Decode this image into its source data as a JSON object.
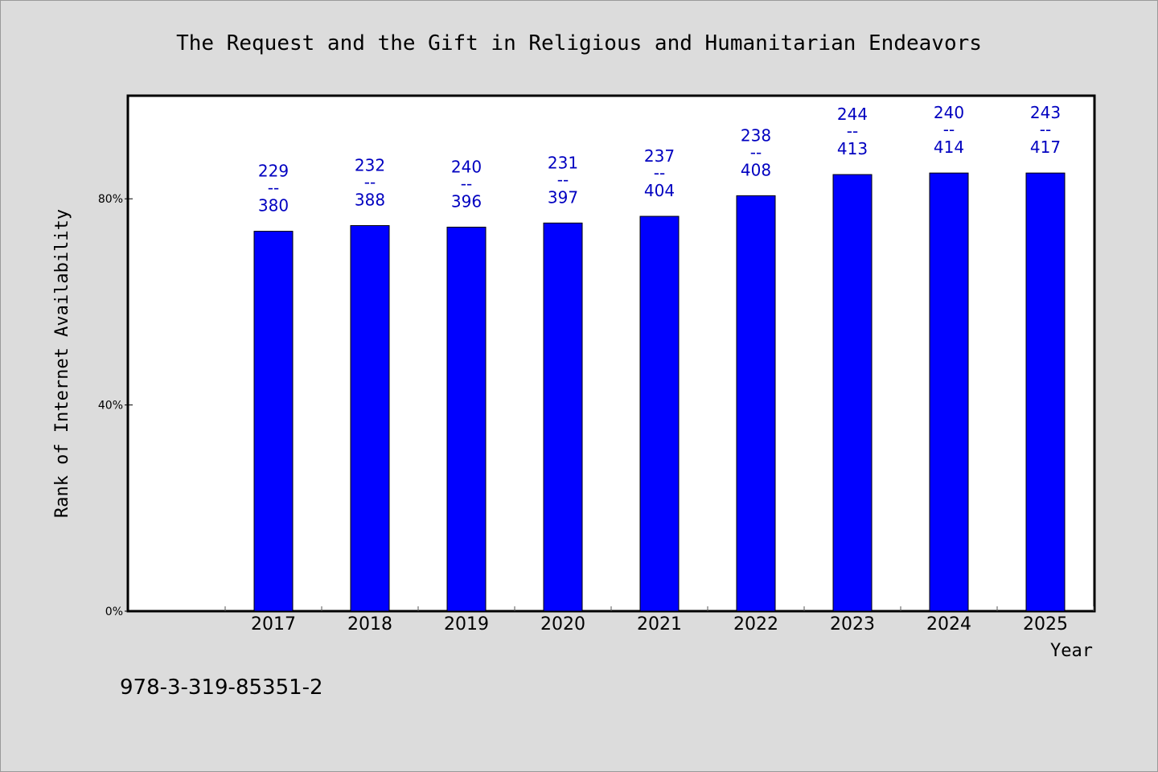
{
  "colors": {
    "background": "#dcdcdc",
    "plot_bg": "#ffffff",
    "bar": "#0000ff",
    "label": "#0000c0",
    "text": "#000000"
  },
  "footer": {
    "id_text": "978-3-319-85351-2"
  },
  "chart_data": {
    "type": "bar",
    "title": "The Request and the Gift in Religious and Humanitarian Endeavors",
    "xlabel": "Year",
    "ylabel": "Rank of Internet Availability",
    "categories": [
      "2017",
      "2018",
      "2019",
      "2020",
      "2021",
      "2022",
      "2023",
      "2024",
      "2025"
    ],
    "values": [
      73.7,
      74.8,
      74.5,
      75.3,
      76.6,
      80.6,
      84.7,
      85.0,
      85.0
    ],
    "value_unit": "%",
    "data_labels": [
      {
        "top": "229",
        "sep": "--",
        "bottom": "380"
      },
      {
        "top": "232",
        "sep": "--",
        "bottom": "388"
      },
      {
        "top": "240",
        "sep": "--",
        "bottom": "396"
      },
      {
        "top": "231",
        "sep": "--",
        "bottom": "397"
      },
      {
        "top": "237",
        "sep": "--",
        "bottom": "404"
      },
      {
        "top": "238",
        "sep": "--",
        "bottom": "408"
      },
      {
        "top": "244",
        "sep": "--",
        "bottom": "413"
      },
      {
        "top": "240",
        "sep": "--",
        "bottom": "414"
      },
      {
        "top": "243",
        "sep": "--",
        "bottom": "417"
      }
    ],
    "ylim": [
      0,
      100
    ],
    "yticks": [
      0,
      40,
      80
    ],
    "ytick_labels": [
      "0%",
      "40%",
      "80%"
    ],
    "grid": false,
    "legend": "none"
  }
}
